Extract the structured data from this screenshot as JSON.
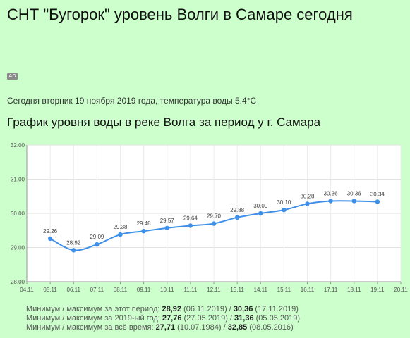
{
  "header": {
    "title": "СНТ \"Бугорок\" уровень Волги в Самаре сегодня",
    "ad_icon": "AD"
  },
  "today": {
    "text": "Сегодня вторник 19 ноября 2019 года, температура воды 5.4°C"
  },
  "chart_heading": "График уровня воды в реке Волга за период у г. Самара",
  "chart_data": {
    "type": "line",
    "title": "",
    "xlabel": "",
    "ylabel": "",
    "x_ticks": [
      "04.11",
      "05.11",
      "06.11",
      "07.11",
      "08.11",
      "09.11",
      "10.11",
      "11.11",
      "12.11",
      "13.11",
      "14.11",
      "15.11",
      "16.11",
      "17.11",
      "18.11",
      "19.11",
      "20.11"
    ],
    "x": [
      "05.11",
      "06.11",
      "07.11",
      "08.11",
      "09.11",
      "10.11",
      "11.11",
      "12.11",
      "13.11",
      "14.11",
      "15.11",
      "16.11",
      "17.11",
      "18.11",
      "19.11"
    ],
    "values": [
      29.26,
      28.92,
      29.09,
      29.38,
      29.48,
      29.57,
      29.64,
      29.7,
      29.88,
      30.0,
      30.1,
      30.28,
      30.36,
      30.36,
      30.34
    ],
    "labels": [
      "29.26",
      "28.92",
      "29.09",
      "29.38",
      "29.48",
      "29.57",
      "29.64",
      "29.70",
      "29.88",
      "30.00",
      "30.10",
      "30.28",
      "30.36",
      "30.36",
      "30.34"
    ],
    "y_ticks": [
      "28.00",
      "29.00",
      "30.00",
      "31.00",
      "32.00"
    ],
    "ylim": [
      28,
      32
    ],
    "grid": true,
    "line_color": "#3d8fe8",
    "background": "#ffffff"
  },
  "stats": [
    {
      "prefix": "Минимум / максимум за этот период: ",
      "min": "28,92",
      "min_date": " (06.11.2019) / ",
      "max": "30,36",
      "max_date": " (17.11.2019)"
    },
    {
      "prefix": "Минимум / максимум за 2019-ый год: ",
      "min": "27,76",
      "min_date": " (27.05.2019) / ",
      "max": "31,36",
      "max_date": " (05.05.2019)"
    },
    {
      "prefix": "Минимум / максимум  за  всё  время: ",
      "min": "27,71",
      "min_date": " (10.07.1984) / ",
      "max": "32,85",
      "max_date": " (08.05.2016)"
    }
  ]
}
